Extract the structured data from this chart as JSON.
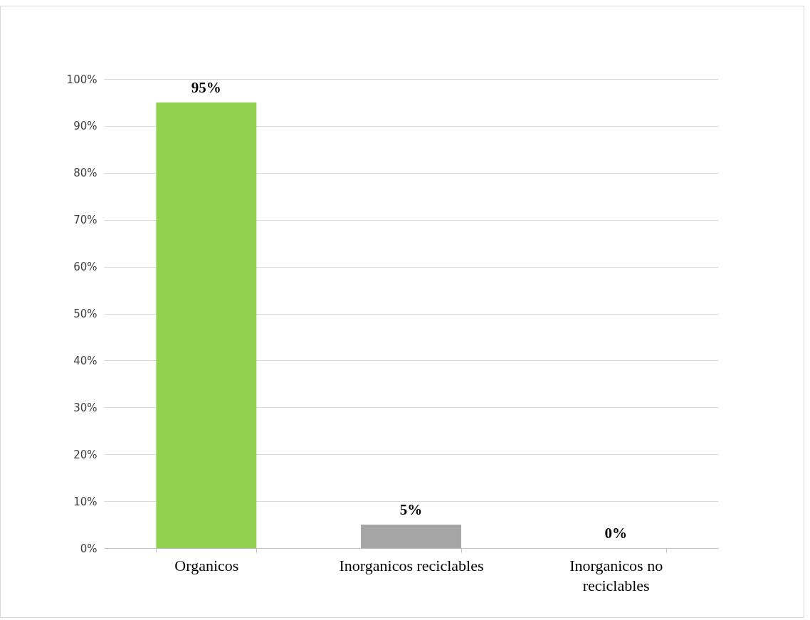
{
  "chart_data": {
    "type": "bar",
    "categories": [
      "Organicos",
      "Inorganicos reciclables",
      "Inorganicos no reciclables"
    ],
    "values": [
      95,
      5,
      0
    ],
    "colors": [
      "#92d050",
      "#a5a5a5",
      "#4472c4"
    ],
    "value_labels": [
      "95%",
      "5%",
      "0%"
    ],
    "ylim": [
      0,
      100
    ],
    "yticks": [
      {
        "value": 0,
        "label": "0%"
      },
      {
        "value": 10,
        "label": "10%"
      },
      {
        "value": 20,
        "label": "20%"
      },
      {
        "value": 30,
        "label": "30%"
      },
      {
        "value": 40,
        "label": "40%"
      },
      {
        "value": 50,
        "label": "50%"
      },
      {
        "value": 60,
        "label": "60%"
      },
      {
        "value": 70,
        "label": "70%"
      },
      {
        "value": 80,
        "label": "80%"
      },
      {
        "value": 90,
        "label": "90%"
      },
      {
        "value": 100,
        "label": "100%"
      }
    ],
    "grid": "y"
  }
}
